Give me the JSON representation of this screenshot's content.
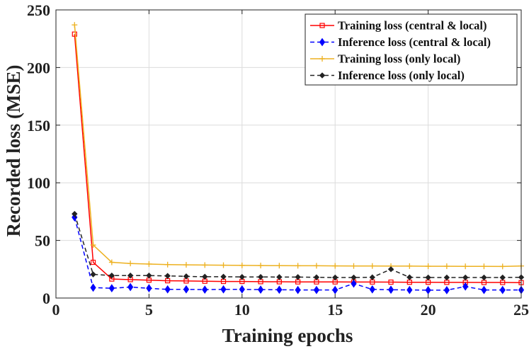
{
  "chart_data": {
    "type": "line",
    "title": "",
    "xlabel": "Training epochs",
    "ylabel": "Recorded loss (MSE)",
    "xlim": [
      0,
      25
    ],
    "ylim": [
      0,
      250
    ],
    "xticks": [
      0,
      5,
      10,
      15,
      20,
      25
    ],
    "yticks": [
      0,
      50,
      100,
      150,
      200,
      250
    ],
    "grid": true,
    "legend_position": "top-right",
    "x": [
      1,
      2,
      3,
      4,
      5,
      6,
      7,
      8,
      9,
      10,
      11,
      12,
      13,
      14,
      15,
      16,
      17,
      18,
      19,
      20,
      21,
      22,
      23,
      24,
      25
    ],
    "series": [
      {
        "name": "Training loss (central & local)",
        "color": "#ff0000",
        "style": "solid",
        "marker": "square",
        "values": [
          229,
          31,
          16.5,
          16,
          15.5,
          15,
          14.8,
          14.6,
          14.4,
          14.4,
          14.2,
          14.1,
          14,
          14,
          14,
          13.9,
          13.9,
          13.8,
          13.7,
          13.7,
          13.6,
          13.6,
          13.5,
          13.5,
          13.4
        ]
      },
      {
        "name": "Inference loss (central & local)",
        "color": "#0000ff",
        "style": "dashed",
        "marker": "diamond",
        "values": [
          70,
          9,
          8.5,
          9.5,
          8.5,
          7.5,
          7.5,
          7.3,
          7.5,
          7.5,
          7.3,
          7.2,
          7,
          7,
          7,
          12.5,
          7.5,
          7.2,
          7,
          6.8,
          6.8,
          10,
          7,
          7,
          7
        ]
      },
      {
        "name": "Training loss (only local)",
        "color": "#edb120",
        "style": "solid",
        "marker": "plus",
        "values": [
          237,
          46,
          31,
          30,
          29.5,
          29,
          28.8,
          28.6,
          28.5,
          28.3,
          28.2,
          28.1,
          28,
          28,
          27.9,
          27.8,
          27.8,
          27.7,
          27.7,
          27.6,
          27.6,
          27.5,
          27.5,
          27.4,
          27.8
        ]
      },
      {
        "name": "Inference loss (only local)",
        "color": "#222222",
        "style": "dashed",
        "marker": "diamond-filled",
        "values": [
          73,
          20.5,
          19.5,
          19.5,
          19.5,
          19.2,
          18.8,
          18.5,
          18.5,
          18.3,
          18.3,
          18.2,
          18.2,
          18,
          17.8,
          17.8,
          18,
          25,
          18,
          17.8,
          17.8,
          17.8,
          17.8,
          17.8,
          18
        ]
      }
    ]
  }
}
